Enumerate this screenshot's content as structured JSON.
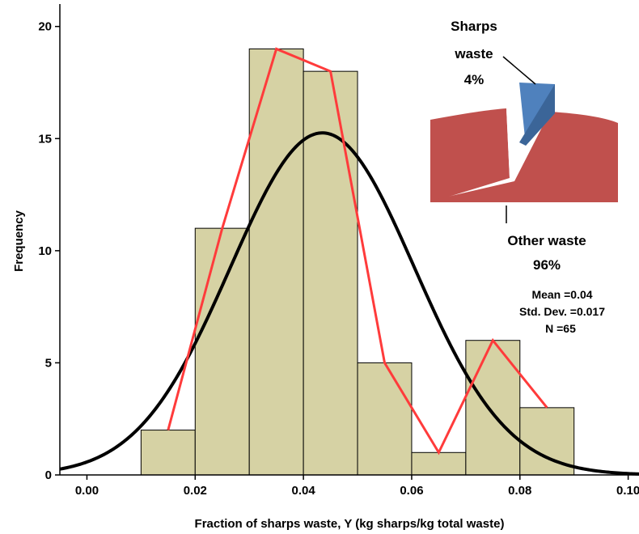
{
  "chart_data": {
    "type": "bar",
    "subtype": "histogram",
    "xlabel": "Fraction of sharps waste, Y (kg sharps/kg total waste)",
    "ylabel": "Frequency",
    "xlim": [
      -0.005,
      0.102
    ],
    "ylim": [
      0,
      21
    ],
    "xticks": [
      0.0,
      0.02,
      0.04,
      0.06,
      0.08,
      0.1
    ],
    "xtick_labels": [
      "0.00",
      "0.02",
      "0.04",
      "0.06",
      "0.08",
      "0.10"
    ],
    "yticks": [
      0,
      5,
      10,
      15,
      20
    ],
    "ytick_labels": [
      "0",
      "5",
      "10",
      "15",
      "20"
    ],
    "bins": [
      {
        "x0": 0.01,
        "x1": 0.02,
        "count": 2
      },
      {
        "x0": 0.02,
        "x1": 0.03,
        "count": 11
      },
      {
        "x0": 0.03,
        "x1": 0.04,
        "count": 19
      },
      {
        "x0": 0.04,
        "x1": 0.05,
        "count": 18
      },
      {
        "x0": 0.05,
        "x1": 0.06,
        "count": 5
      },
      {
        "x0": 0.06,
        "x1": 0.07,
        "count": 1
      },
      {
        "x0": 0.07,
        "x1": 0.08,
        "count": 6
      },
      {
        "x0": 0.08,
        "x1": 0.09,
        "count": 3
      }
    ],
    "frequency_polygon": {
      "x": [
        0.015,
        0.025,
        0.035,
        0.045,
        0.055,
        0.065,
        0.075,
        0.085
      ],
      "y": [
        2,
        11,
        19,
        18,
        5,
        1,
        6,
        3
      ]
    },
    "normal_curve": {
      "mean": 0.0435,
      "sd": 0.017,
      "n": 65,
      "bin_width": 0.01
    },
    "stats": {
      "mean": "Mean =0.04",
      "sd": "Std. Dev. =0.017",
      "n": "N =65"
    },
    "inset_pie": {
      "type": "pie",
      "slices": [
        {
          "label_line1": "Sharps",
          "label_line2": "waste",
          "percent_label": "4%",
          "value": 4,
          "color": "#4f81bd"
        },
        {
          "label_line1": "Other waste",
          "label_line2": "",
          "percent_label": "96%",
          "value": 96,
          "color": "#c0504d"
        }
      ]
    },
    "colors": {
      "bar_fill": "#d6d2a4",
      "bar_stroke": "#000000",
      "polygon": "#ff3b3b",
      "curve": "#000000"
    }
  }
}
